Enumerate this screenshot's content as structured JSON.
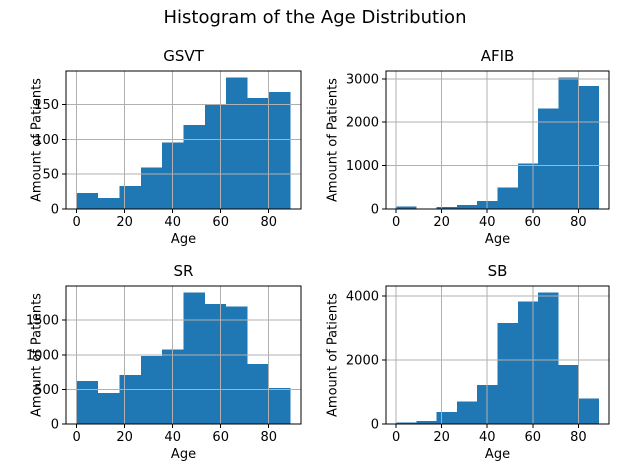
{
  "figure": {
    "title": "Histogram of the Age Distribution",
    "background_color": "#ffffff",
    "bar_color": "#1f77b4",
    "grid_color": "#b0b0b0",
    "spine_color": "#000000",
    "text_color": "#000000"
  },
  "chart_data": [
    {
      "type": "bar",
      "title": "GSVT",
      "xlabel": "Age",
      "ylabel": "Amount of Patients",
      "bin_edges": [
        0,
        8.9,
        17.8,
        26.7,
        35.6,
        44.5,
        53.4,
        62.3,
        71.2,
        80.1,
        89
      ],
      "values": [
        23,
        16,
        33,
        60,
        96,
        121,
        150,
        189,
        160,
        168
      ],
      "xticks": [
        0,
        20,
        40,
        60,
        80
      ],
      "yticks": [
        0,
        50,
        100,
        150
      ],
      "xlim": [
        -4.45,
        93.45
      ],
      "ylim": [
        0,
        198.5
      ],
      "grid": true,
      "legend": null
    },
    {
      "type": "bar",
      "title": "AFIB",
      "xlabel": "Age",
      "ylabel": "Amount of Patients",
      "bin_edges": [
        0,
        8.9,
        17.8,
        26.7,
        35.6,
        44.5,
        53.4,
        62.3,
        71.2,
        80.1,
        89
      ],
      "values": [
        60,
        10,
        45,
        90,
        180,
        490,
        1045,
        2320,
        3030,
        2840
      ],
      "xticks": [
        0,
        20,
        40,
        60,
        80
      ],
      "yticks": [
        0,
        1000,
        2000,
        3000
      ],
      "xlim": [
        -4.45,
        93.45
      ],
      "ylim": [
        0,
        3181
      ],
      "grid": true,
      "legend": null
    },
    {
      "type": "bar",
      "title": "SR",
      "xlabel": "Age",
      "ylabel": "Amount of Patients",
      "bin_edges": [
        0,
        8.9,
        17.8,
        26.7,
        35.6,
        44.5,
        53.4,
        62.3,
        71.2,
        80.1,
        89
      ],
      "values": [
        620,
        450,
        710,
        980,
        1075,
        1900,
        1735,
        1700,
        870,
        520
      ],
      "xticks": [
        0,
        20,
        40,
        60,
        80
      ],
      "yticks": [
        0,
        500,
        1000,
        1500
      ],
      "xlim": [
        -4.45,
        93.45
      ],
      "ylim": [
        0,
        1995
      ],
      "grid": true,
      "legend": null
    },
    {
      "type": "bar",
      "title": "SB",
      "xlabel": "Age",
      "ylabel": "Amount of Patients",
      "bin_edges": [
        0,
        8.9,
        17.8,
        26.7,
        35.6,
        44.5,
        53.4,
        62.3,
        71.2,
        80.1,
        89
      ],
      "values": [
        40,
        95,
        375,
        700,
        1220,
        3150,
        3820,
        4100,
        1840,
        800
      ],
      "xticks": [
        0,
        20,
        40,
        60,
        80
      ],
      "yticks": [
        0,
        2000,
        4000
      ],
      "xlim": [
        -4.45,
        93.45
      ],
      "ylim": [
        0,
        4305
      ],
      "grid": true,
      "legend": null
    }
  ]
}
